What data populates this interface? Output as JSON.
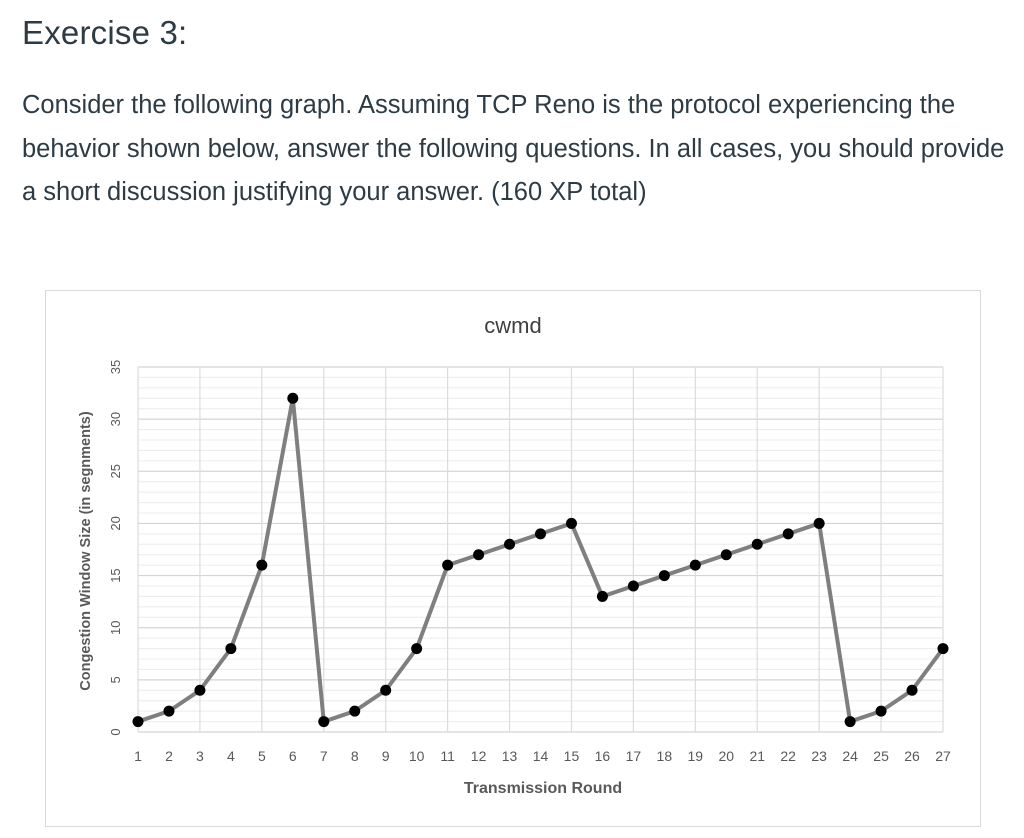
{
  "page": {
    "heading": "Exercise 3:",
    "paragraph": "Consider the following graph. Assuming TCP Reno is the protocol experiencing the behavior shown below, answer the following questions. In all cases, you should provide a short discussion justifying your answer. (160 XP total)"
  },
  "chart_data": {
    "type": "line",
    "title": "cwmd",
    "xlabel": "Transmission Round",
    "ylabel": "Congestion Window Size (in segnments)",
    "x": [
      1,
      2,
      3,
      4,
      5,
      6,
      7,
      8,
      9,
      10,
      11,
      12,
      13,
      14,
      15,
      16,
      17,
      18,
      19,
      20,
      21,
      22,
      23,
      24,
      25,
      26,
      27
    ],
    "series": [
      {
        "values": [
          1,
          2,
          4,
          8,
          16,
          32,
          1,
          2,
          4,
          8,
          16,
          17,
          18,
          19,
          20,
          13,
          14,
          15,
          16,
          17,
          18,
          19,
          20,
          1,
          2,
          4,
          8
        ]
      }
    ],
    "yticks": [
      "0",
      "5",
      "10",
      "15",
      "20",
      "25",
      "30",
      "35"
    ],
    "ylim": [
      0,
      35
    ],
    "xlim": [
      1,
      27
    ],
    "grid": true,
    "legend": "none",
    "colors": {
      "line": "#7f7f7f",
      "marker": "#000000",
      "grid": "#d9d9d9"
    }
  }
}
